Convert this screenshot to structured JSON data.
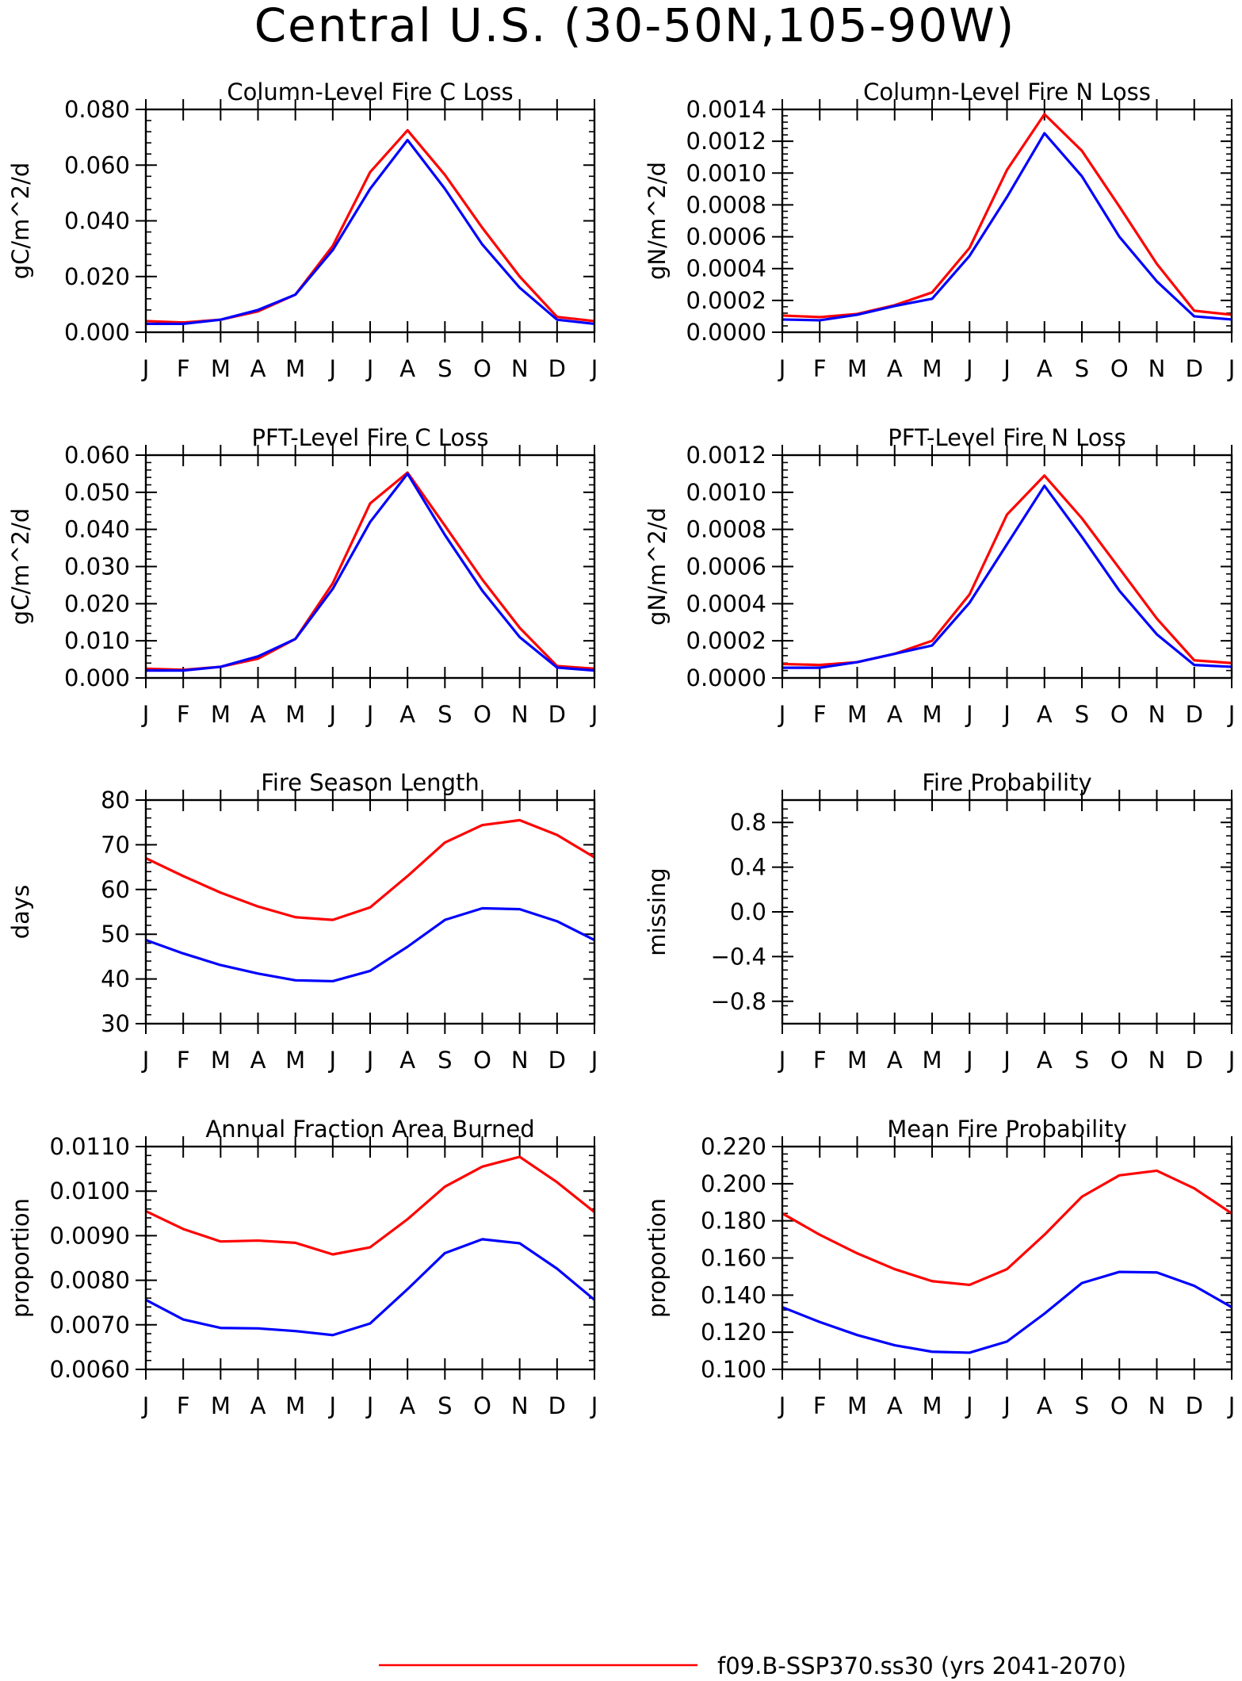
{
  "page": {
    "title": "Central U.S. (30-50N,105-90W)"
  },
  "legend": {
    "entries": [
      {
        "label": "f09.B-SSP370.ss30 (yrs 2041-2070)",
        "color": "#ff0000"
      }
    ]
  },
  "chart_data": [
    {
      "type": "line",
      "title": "Column-Level Fire C Loss",
      "ylabel": "gC/m^2/d",
      "xlabel": "",
      "x": [
        "J",
        "F",
        "M",
        "A",
        "M",
        "J",
        "J",
        "A",
        "S",
        "O",
        "N",
        "D",
        "J"
      ],
      "ylim": [
        0,
        0.08
      ],
      "yticks": [
        "0.000",
        "0.020",
        "0.040",
        "0.060",
        "0.080"
      ],
      "grid": false,
      "series": [
        {
          "color": "#ff0000",
          "values": [
            0.004,
            0.0035,
            0.0045,
            0.0075,
            0.0135,
            0.031,
            0.0575,
            0.0725,
            0.0565,
            0.0375,
            0.02,
            0.0055,
            0.004
          ]
        },
        {
          "color": "#0000ff",
          "values": [
            0.003,
            0.003,
            0.0045,
            0.008,
            0.0135,
            0.0295,
            0.0515,
            0.069,
            0.0515,
            0.0315,
            0.016,
            0.0045,
            0.003
          ]
        }
      ]
    },
    {
      "type": "line",
      "title": "Column-Level Fire N Loss",
      "ylabel": "gN/m^2/d",
      "xlabel": "",
      "x": [
        "J",
        "F",
        "M",
        "A",
        "M",
        "J",
        "J",
        "A",
        "S",
        "O",
        "N",
        "D",
        "J"
      ],
      "ylim": [
        0,
        0.0014
      ],
      "yticks": [
        "0.0000",
        "0.0002",
        "0.0004",
        "0.0006",
        "0.0008",
        "0.0010",
        "0.0012",
        "0.0014"
      ],
      "grid": false,
      "series": [
        {
          "color": "#ff0000",
          "values": [
            0.000105,
            9.5e-05,
            0.000115,
            0.00017,
            0.00025,
            0.00053,
            0.00102,
            0.00137,
            0.00114,
            0.00079,
            0.00043,
            0.000135,
            0.00011
          ]
        },
        {
          "color": "#0000ff",
          "values": [
            8e-05,
            7.5e-05,
            0.00011,
            0.000165,
            0.00021,
            0.00048,
            0.00085,
            0.00125,
            0.00098,
            0.0006,
            0.00032,
            0.0001,
            8e-05
          ]
        }
      ]
    },
    {
      "type": "line",
      "title": "PFT-Level Fire C Loss",
      "ylabel": "gC/m^2/d",
      "xlabel": "",
      "x": [
        "J",
        "F",
        "M",
        "A",
        "M",
        "J",
        "J",
        "A",
        "S",
        "O",
        "N",
        "D",
        "J"
      ],
      "ylim": [
        0,
        0.06
      ],
      "yticks": [
        "0.000",
        "0.010",
        "0.020",
        "0.030",
        "0.040",
        "0.050",
        "0.060"
      ],
      "grid": false,
      "series": [
        {
          "color": "#ff0000",
          "values": [
            0.0025,
            0.0022,
            0.003,
            0.0052,
            0.0105,
            0.0255,
            0.047,
            0.0553,
            0.041,
            0.0265,
            0.0135,
            0.0032,
            0.0025
          ]
        },
        {
          "color": "#0000ff",
          "values": [
            0.002,
            0.002,
            0.003,
            0.0058,
            0.0105,
            0.024,
            0.042,
            0.055,
            0.0385,
            0.0235,
            0.011,
            0.0028,
            0.002
          ]
        }
      ]
    },
    {
      "type": "line",
      "title": "PFT-Level Fire N Loss",
      "ylabel": "gN/m^2/d",
      "xlabel": "",
      "x": [
        "J",
        "F",
        "M",
        "A",
        "M",
        "J",
        "J",
        "A",
        "S",
        "O",
        "N",
        "D",
        "J"
      ],
      "ylim": [
        0,
        0.0012
      ],
      "yticks": [
        "0.0000",
        "0.0002",
        "0.0004",
        "0.0006",
        "0.0008",
        "0.0010",
        "0.0012"
      ],
      "grid": false,
      "series": [
        {
          "color": "#ff0000",
          "values": [
            7.5e-05,
            7e-05,
            8.5e-05,
            0.00013,
            0.0002,
            0.00045,
            0.00088,
            0.00109,
            0.00086,
            0.00059,
            0.00032,
            9.5e-05,
            8e-05
          ]
        },
        {
          "color": "#0000ff",
          "values": [
            5.5e-05,
            5.5e-05,
            8.5e-05,
            0.00013,
            0.000175,
            0.000405,
            0.00072,
            0.001035,
            0.00076,
            0.00047,
            0.000235,
            7e-05,
            6e-05
          ]
        }
      ]
    },
    {
      "type": "line",
      "title": "Fire Season Length",
      "ylabel": "days",
      "xlabel": "",
      "x": [
        "J",
        "F",
        "M",
        "A",
        "M",
        "J",
        "J",
        "A",
        "S",
        "O",
        "N",
        "D",
        "J"
      ],
      "ylim": [
        30,
        80
      ],
      "yticks": [
        "30",
        "40",
        "50",
        "60",
        "70",
        "80"
      ],
      "grid": false,
      "series": [
        {
          "color": "#ff0000",
          "values": [
            67.0,
            63.0,
            59.3,
            56.2,
            53.8,
            53.2,
            56.0,
            63.0,
            70.5,
            74.4,
            75.5,
            72.2,
            67.2
          ]
        },
        {
          "color": "#0000ff",
          "values": [
            48.7,
            45.7,
            43.1,
            41.2,
            39.7,
            39.5,
            41.8,
            47.2,
            53.2,
            55.8,
            55.6,
            52.9,
            48.7
          ]
        }
      ]
    },
    {
      "type": "line",
      "title": "Fire Probability",
      "ylabel": "missing",
      "xlabel": "",
      "x": [
        "J",
        "F",
        "M",
        "A",
        "M",
        "J",
        "J",
        "A",
        "S",
        "O",
        "N",
        "D",
        "J"
      ],
      "ylim": [
        -1.0,
        1.0
      ],
      "yticks": [
        "-0.8",
        "-0.4",
        "0.0",
        "0.4",
        "0.8"
      ],
      "grid": false,
      "series": []
    },
    {
      "type": "line",
      "title": "Annual Fraction Area Burned",
      "ylabel": "proportion",
      "xlabel": "",
      "x": [
        "J",
        "F",
        "M",
        "A",
        "M",
        "J",
        "J",
        "A",
        "S",
        "O",
        "N",
        "D",
        "J"
      ],
      "ylim": [
        0.006,
        0.011
      ],
      "yticks": [
        "0.0060",
        "0.0070",
        "0.0080",
        "0.0090",
        "0.0100",
        "0.0110"
      ],
      "grid": false,
      "series": [
        {
          "color": "#ff0000",
          "values": [
            0.00955,
            0.00915,
            0.00887,
            0.00889,
            0.00884,
            0.00858,
            0.00874,
            0.00937,
            0.0101,
            0.01055,
            0.01077,
            0.0102,
            0.00953
          ]
        },
        {
          "color": "#0000ff",
          "values": [
            0.00756,
            0.00712,
            0.00693,
            0.00692,
            0.00686,
            0.00677,
            0.00703,
            0.0078,
            0.00861,
            0.00892,
            0.00883,
            0.00826,
            0.00756
          ]
        }
      ]
    },
    {
      "type": "line",
      "title": "Mean Fire Probability",
      "ylabel": "proportion",
      "xlabel": "",
      "x": [
        "J",
        "F",
        "M",
        "A",
        "M",
        "J",
        "J",
        "A",
        "S",
        "O",
        "N",
        "D",
        "J"
      ],
      "ylim": [
        0.1,
        0.22
      ],
      "yticks": [
        "0.100",
        "0.120",
        "0.140",
        "0.160",
        "0.180",
        "0.200",
        "0.220"
      ],
      "grid": false,
      "series": [
        {
          "color": "#ff0000",
          "values": [
            0.184,
            0.1725,
            0.1625,
            0.154,
            0.1475,
            0.1455,
            0.154,
            0.1725,
            0.193,
            0.2045,
            0.207,
            0.1975,
            0.184
          ]
        },
        {
          "color": "#0000ff",
          "values": [
            0.1335,
            0.1255,
            0.1185,
            0.113,
            0.1095,
            0.109,
            0.115,
            0.13,
            0.1465,
            0.1525,
            0.1522,
            0.145,
            0.1335
          ]
        }
      ]
    }
  ]
}
